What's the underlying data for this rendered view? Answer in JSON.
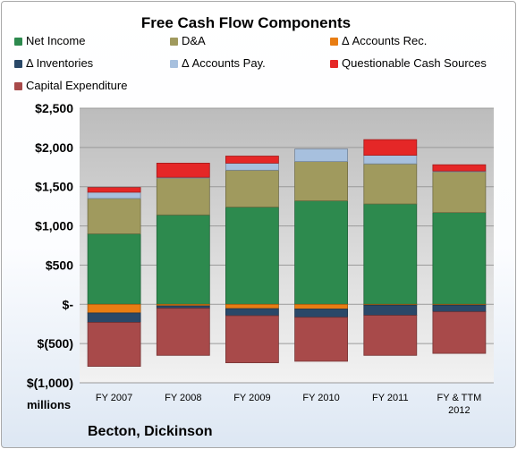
{
  "chart_data": {
    "type": "bar",
    "stacked": true,
    "title": "Free Cash Flow Components",
    "categories": [
      "FY 2007",
      "FY 2008",
      "FY 2009",
      "FY 2010",
      "FY 2011",
      "FY & TTM 2012"
    ],
    "y_tick_labels": [
      "$2,500",
      "$2,000",
      "$1,500",
      "$1,000",
      "$500",
      "$-",
      "$(500)",
      "$(1,000)"
    ],
    "y_ticks": [
      2500,
      2000,
      1500,
      1000,
      500,
      0,
      -500,
      -1000
    ],
    "ylim": [
      -1000,
      2500
    ],
    "units_label": "millions",
    "legend_position": "top",
    "grid": true,
    "series": [
      {
        "name": "Net Income",
        "color": "#2d8a4e",
        "values": [
          900,
          1140,
          1240,
          1320,
          1280,
          1170
        ]
      },
      {
        "name": "D&A",
        "color": "#a09a5e",
        "values": [
          450,
          470,
          470,
          500,
          510,
          520
        ]
      },
      {
        "name": "Δ Accounts Rec.",
        "color": "#e87d13",
        "values": [
          -110,
          -20,
          -55,
          -60,
          -10,
          -10
        ]
      },
      {
        "name": "Δ Inventories",
        "color": "#2a4868",
        "values": [
          -120,
          -30,
          -90,
          -105,
          -130,
          -85
        ]
      },
      {
        "name": "Δ Accounts Pay.",
        "color": "#a7c0de",
        "values": [
          80,
          10,
          90,
          160,
          110,
          10
        ]
      },
      {
        "name": "Questionable Cash Sources",
        "color": "#e52727",
        "values": [
          60,
          180,
          90,
          0,
          200,
          80
        ]
      },
      {
        "name": "Capital Expenditure",
        "color": "#a84a4a",
        "values": [
          -560,
          -600,
          -600,
          -560,
          -510,
          -530
        ]
      }
    ]
  },
  "company": "Becton, Dickinson"
}
